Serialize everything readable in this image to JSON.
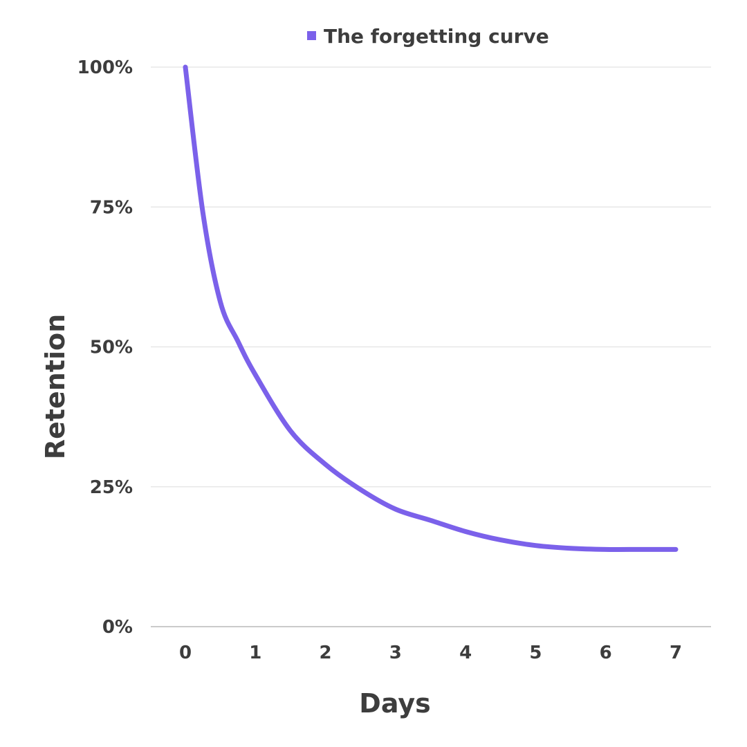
{
  "chart_data": {
    "type": "line",
    "title": "",
    "xlabel": "Days",
    "ylabel": "Retention",
    "x": [
      0,
      0.25,
      0.5,
      0.75,
      1,
      1.5,
      2,
      2.5,
      3,
      3.5,
      4,
      4.5,
      5,
      5.5,
      6,
      6.5,
      7
    ],
    "x_ticks": [
      "0",
      "1",
      "2",
      "3",
      "4",
      "5",
      "6",
      "7"
    ],
    "x_tick_values": [
      0,
      1,
      2,
      3,
      4,
      5,
      6,
      7
    ],
    "y_ticks": [
      "0%",
      "25%",
      "50%",
      "75%",
      "100%"
    ],
    "y_tick_values": [
      0,
      25,
      50,
      75,
      100
    ],
    "xlim": [
      0,
      7
    ],
    "ylim": [
      0,
      100
    ],
    "grid": "horizontal",
    "legend_position": "top-center",
    "series": [
      {
        "name": "The forgetting curve",
        "color": "#7b61ea",
        "values": [
          100,
          74,
          58,
          51,
          45,
          35,
          29,
          24.5,
          21,
          19,
          17,
          15.5,
          14.5,
          14,
          13.8,
          13.8,
          13.8
        ]
      }
    ]
  }
}
